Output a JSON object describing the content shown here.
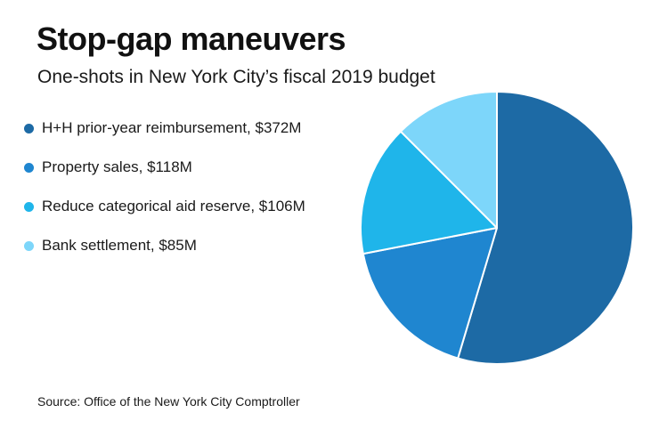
{
  "header": {
    "title": "Stop-gap maneuvers",
    "subtitle": "One-shots in New York City’s fiscal 2019 budget"
  },
  "legend": {
    "items": [
      {
        "label": "H+H prior-year reimbursement, $372M",
        "color": "#1d6aa5"
      },
      {
        "label": "Property sales, $118M",
        "color": "#1f86d0"
      },
      {
        "label": "Reduce categorical aid reserve, $106M",
        "color": "#1fb5ea"
      },
      {
        "label": "Bank settlement, $85M",
        "color": "#7dd6fa"
      }
    ]
  },
  "footer": {
    "source": "Source: Office of the New York City Comptroller"
  },
  "chart_data": {
    "type": "pie",
    "title": "Stop-gap maneuvers",
    "subtitle": "One-shots in New York City’s fiscal 2019 budget",
    "slices": [
      {
        "label": "H+H prior-year reimbursement",
        "value": 372,
        "unit": "$M",
        "color": "#1d6aa5"
      },
      {
        "label": "Property sales",
        "value": 118,
        "unit": "$M",
        "color": "#1f86d0"
      },
      {
        "label": "Reduce categorical aid reserve",
        "value": 106,
        "unit": "$M",
        "color": "#1fb5ea"
      },
      {
        "label": "Bank settlement",
        "value": 85,
        "unit": "$M",
        "color": "#7dd6fa"
      }
    ],
    "start_angle": "12 o'clock",
    "direction": "clockwise",
    "legend_position": "left",
    "source": "Source: Office of the New York City Comptroller"
  }
}
